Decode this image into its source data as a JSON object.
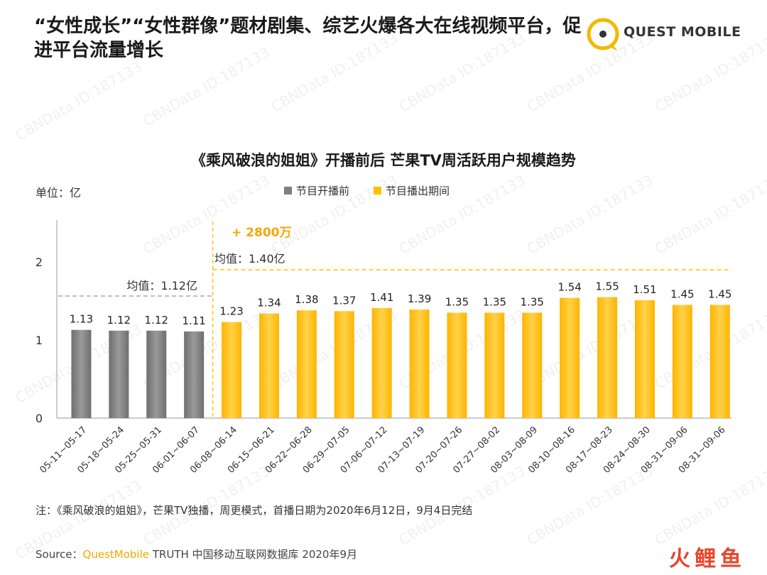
{
  "header": {
    "title": "“女性成长”“女性群像”题材剧集、综艺火爆各大在线视频平台，促进平台流量增长",
    "brand": "QUEST MOBILE"
  },
  "watermark_text": "CBNData ID:187133",
  "chart_data": {
    "type": "bar",
    "title": "《乘风破浪的姐姐》开播前后 芒果TV周活跃用户规模趋势",
    "unit": "单位：亿",
    "categories": [
      "05-11~05-17",
      "05-18~05-24",
      "05-25~05-31",
      "06-01~06-07",
      "06-08~06-14",
      "06-15~06-21",
      "06-22~06-28",
      "06-29~07-05",
      "07-06~07-12",
      "07-13~07-19",
      "07-20~07-26",
      "07-27~08-02",
      "08-03~08-09",
      "08-10~08-16",
      "08-17~08-23",
      "08-24~08-30",
      "08-31~09-06",
      "08-31~09-06"
    ],
    "values": [
      1.13,
      1.12,
      1.12,
      1.11,
      1.23,
      1.34,
      1.38,
      1.37,
      1.41,
      1.39,
      1.35,
      1.35,
      1.35,
      1.54,
      1.55,
      1.51,
      1.45,
      1.45
    ],
    "value_labels": [
      "1.13",
      "1.12",
      "1.12",
      "1.11",
      "1.23",
      "1.34",
      "1.38",
      "1.37",
      "1.41",
      "1.39",
      "1.35",
      "1.35",
      "1.35",
      "1.54",
      "1.55",
      "1.51",
      "1.45",
      "1.45"
    ],
    "series": [
      {
        "name": "节目开播前",
        "range": [
          0,
          3
        ],
        "color": "#808080"
      },
      {
        "name": "节目播出期间",
        "range": [
          4,
          17
        ],
        "color": "#ffc000"
      }
    ],
    "ylim": [
      0,
      2.2
    ],
    "yticks": [
      0,
      1,
      2
    ],
    "ytick_labels": [
      "0",
      "1",
      "2"
    ],
    "averages": [
      {
        "label": "均值：1.12亿",
        "value": 1.12,
        "range": [
          0,
          3
        ],
        "color": "#999999"
      },
      {
        "label": "均值：1.40亿",
        "value": 1.4,
        "range": [
          4,
          17
        ],
        "color": "#ffc000"
      }
    ],
    "annotation": "+ 2800万",
    "legend_position": "top-center"
  },
  "footer": {
    "note": "注：《乘风破浪的姐姐》，芒果TV独播，周更模式，首播日期为2020年6月12日，9月4日完结",
    "source_prefix": "Source：",
    "source_brand": "QuestMobile",
    "source_rest": " TRUTH 中国移动互联网数据库 2020年9月",
    "corner_logo": "火鲤鱼"
  }
}
